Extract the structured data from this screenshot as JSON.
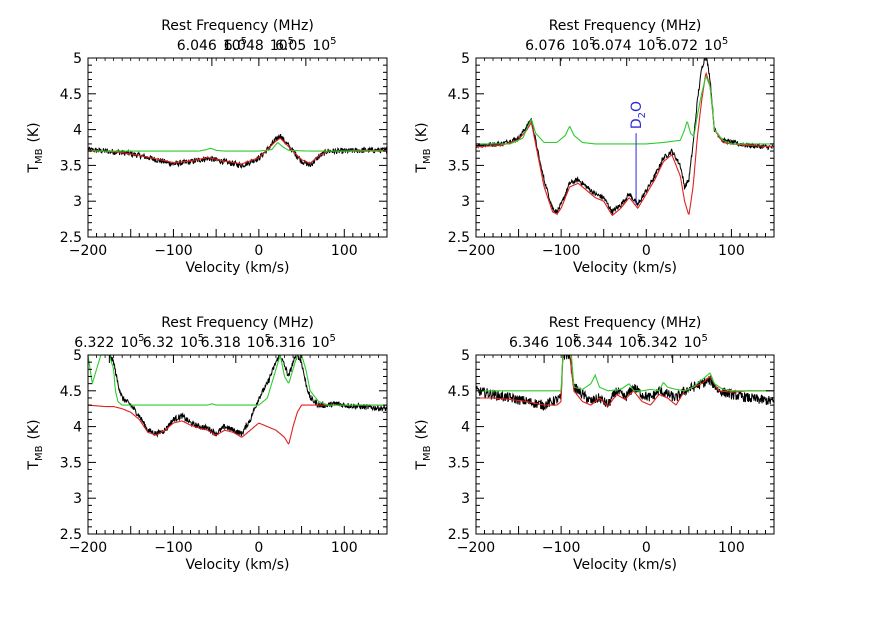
{
  "chart_data": [
    {
      "type": "line",
      "panel": "top-left",
      "xlabel": "Velocity (km/s)",
      "ylabel": "T",
      "ylabel_sub": "MB",
      "ylabel_unit": "(K)",
      "top_axis_label": "Rest Frequency (MHz)",
      "top_ticks": [
        {
          "mantissa": "6.05",
          "exp": "10",
          "sup": "5",
          "x": 55
        },
        {
          "mantissa": "6.048",
          "exp": "10",
          "sup": "5",
          "x": 0
        },
        {
          "mantissa": "6.046",
          "exp": "10",
          "sup": "5",
          "x": -55
        }
      ],
      "xlim": [
        -200,
        150
      ],
      "ylim": [
        2.5,
        5
      ],
      "xticks": [
        -200,
        -100,
        0,
        100
      ],
      "xtick_labels": [
        "−200",
        "−100",
        "0",
        "100"
      ],
      "yticks": [
        2.5,
        3,
        3.5,
        4,
        4.5,
        5
      ],
      "ytick_labels": [
        "2.5",
        "3",
        "3.5",
        "4",
        "4.5",
        "5"
      ],
      "series": [
        {
          "role": "observed",
          "color": "#000000",
          "noise": 0.04,
          "x": [
            -200,
            -180,
            -160,
            -140,
            -120,
            -100,
            -80,
            -60,
            -40,
            -20,
            0,
            10,
            20,
            25,
            30,
            40,
            50,
            60,
            70,
            80,
            100,
            120,
            150
          ],
          "y": [
            3.72,
            3.7,
            3.68,
            3.64,
            3.58,
            3.52,
            3.55,
            3.6,
            3.55,
            3.5,
            3.6,
            3.72,
            3.86,
            3.92,
            3.84,
            3.7,
            3.56,
            3.5,
            3.62,
            3.7,
            3.7,
            3.71,
            3.71
          ]
        },
        {
          "role": "model",
          "color": "#e02020",
          "noise": 0,
          "x": [
            -200,
            -180,
            -160,
            -140,
            -120,
            -100,
            -80,
            -60,
            -40,
            -20,
            0,
            10,
            20,
            25,
            30,
            40,
            50,
            60,
            70,
            80,
            100,
            120,
            150
          ],
          "y": [
            3.71,
            3.7,
            3.68,
            3.64,
            3.59,
            3.54,
            3.56,
            3.61,
            3.56,
            3.52,
            3.61,
            3.72,
            3.84,
            3.88,
            3.82,
            3.7,
            3.58,
            3.53,
            3.63,
            3.7,
            3.7,
            3.71,
            3.71
          ]
        },
        {
          "role": "model",
          "color": "#2ecc2e",
          "noise": 0,
          "x": [
            -200,
            -70,
            -62,
            -56,
            -50,
            -40,
            0,
            15,
            22,
            28,
            35,
            60,
            150
          ],
          "y": [
            3.7,
            3.7,
            3.72,
            3.74,
            3.71,
            3.7,
            3.7,
            3.72,
            3.82,
            3.76,
            3.71,
            3.7,
            3.7
          ]
        }
      ],
      "annotations": []
    },
    {
      "type": "line",
      "panel": "top-right",
      "xlabel": "Velocity (km/s)",
      "ylabel": "T",
      "ylabel_sub": "MB",
      "ylabel_unit": "(K)",
      "top_axis_label": "Rest Frequency (MHz)",
      "top_ticks": [
        {
          "mantissa": "6.076",
          "exp": "10",
          "sup": "5",
          "x": -101
        },
        {
          "mantissa": "6.074",
          "exp": "10",
          "sup": "5",
          "x": -23
        },
        {
          "mantissa": "6.072",
          "exp": "10",
          "sup": "5",
          "x": 55
        }
      ],
      "xlim": [
        -200,
        150
      ],
      "ylim": [
        2.5,
        5
      ],
      "xticks": [
        -200,
        -100,
        0,
        100
      ],
      "xtick_labels": [
        "−200",
        "−100",
        "0",
        "100"
      ],
      "yticks": [
        2.5,
        3,
        3.5,
        4,
        4.5,
        5
      ],
      "ytick_labels": [
        "2.5",
        "3",
        "3.5",
        "4",
        "4.5",
        "5"
      ],
      "series": [
        {
          "role": "observed",
          "color": "#000000",
          "noise": 0.035,
          "x": [
            -200,
            -170,
            -150,
            -140,
            -135,
            -130,
            -125,
            -120,
            -110,
            -105,
            -100,
            -90,
            -80,
            -70,
            -60,
            -50,
            -40,
            -30,
            -20,
            -10,
            0,
            10,
            20,
            30,
            40,
            45,
            50,
            55,
            60,
            65,
            70,
            75,
            80,
            90,
            100,
            120,
            150
          ],
          "y": [
            3.78,
            3.8,
            3.88,
            4.05,
            4.15,
            3.85,
            3.55,
            3.3,
            2.9,
            2.85,
            2.95,
            3.25,
            3.3,
            3.2,
            3.1,
            3.05,
            2.85,
            2.95,
            3.1,
            2.95,
            3.15,
            3.35,
            3.6,
            3.7,
            3.5,
            3.2,
            3.3,
            3.8,
            4.4,
            4.85,
            5.05,
            4.7,
            4.0,
            3.85,
            3.82,
            3.78,
            3.75
          ]
        },
        {
          "role": "model",
          "color": "#e02020",
          "noise": 0,
          "x": [
            -200,
            -170,
            -150,
            -140,
            -135,
            -130,
            -125,
            -120,
            -110,
            -105,
            -100,
            -90,
            -80,
            -70,
            -60,
            -50,
            -40,
            -30,
            -20,
            -10,
            0,
            10,
            20,
            30,
            40,
            45,
            50,
            55,
            60,
            65,
            70,
            75,
            80,
            90,
            100,
            120,
            150
          ],
          "y": [
            3.76,
            3.78,
            3.86,
            4.0,
            4.1,
            3.8,
            3.5,
            3.2,
            2.85,
            2.82,
            2.9,
            3.2,
            3.25,
            3.15,
            3.05,
            3.0,
            2.8,
            2.9,
            3.05,
            2.9,
            3.1,
            3.3,
            3.55,
            3.65,
            3.35,
            3.0,
            2.8,
            3.2,
            3.9,
            4.4,
            4.8,
            4.6,
            4.0,
            3.82,
            3.8,
            3.78,
            3.76
          ]
        },
        {
          "role": "model",
          "color": "#2ecc2e",
          "noise": 0,
          "x": [
            -200,
            -160,
            -145,
            -140,
            -135,
            -130,
            -120,
            -105,
            -95,
            -90,
            -85,
            -75,
            -60,
            -20,
            0,
            20,
            40,
            45,
            48,
            52,
            56,
            60,
            65,
            70,
            75,
            80,
            90,
            100,
            150
          ],
          "y": [
            3.8,
            3.8,
            3.88,
            4.02,
            4.15,
            3.95,
            3.82,
            3.82,
            3.92,
            4.05,
            3.92,
            3.82,
            3.8,
            3.8,
            3.8,
            3.82,
            3.85,
            4.0,
            4.12,
            3.95,
            3.9,
            4.2,
            4.5,
            4.75,
            4.6,
            4.0,
            3.85,
            3.8,
            3.8
          ]
        }
      ],
      "annotations": [
        {
          "text": "D",
          "sub": "2",
          "tail": "O",
          "x": -12,
          "y_from": 2.95,
          "y_to": 3.95
        }
      ]
    },
    {
      "type": "line",
      "panel": "bottom-left",
      "xlabel": "Velocity (km/s)",
      "ylabel": "T",
      "ylabel_sub": "MB",
      "ylabel_unit": "(K)",
      "top_axis_label": "Rest Frequency (MHz)",
      "top_ticks": [
        {
          "mantissa": "6.322",
          "exp": "10",
          "sup": "5",
          "x": -175
        },
        {
          "mantissa": "6.32",
          "exp": "10",
          "sup": "5",
          "x": -100
        },
        {
          "mantissa": "6.318",
          "exp": "10",
          "sup": "5",
          "x": -27
        },
        {
          "mantissa": "6.316",
          "exp": "10",
          "sup": "5",
          "x": 49
        }
      ],
      "xlim": [
        -200,
        150
      ],
      "ylim": [
        2.5,
        5
      ],
      "xticks": [
        -200,
        -100,
        0,
        100
      ],
      "xtick_labels": [
        "−200",
        "−100",
        "0",
        "100"
      ],
      "yticks": [
        2.5,
        3,
        3.5,
        4,
        4.5,
        5
      ],
      "ytick_labels": [
        "2.5",
        "3",
        "3.5",
        "4",
        "4.5",
        "5"
      ],
      "series": [
        {
          "role": "observed",
          "color": "#000000",
          "noise": 0.04,
          "x": [
            -175,
            -170,
            -165,
            -160,
            -150,
            -140,
            -130,
            -120,
            -110,
            -100,
            -90,
            -80,
            -70,
            -60,
            -50,
            -40,
            -30,
            -20,
            -10,
            0,
            10,
            20,
            25,
            30,
            35,
            40,
            45,
            50,
            55,
            60,
            70,
            80,
            90,
            100,
            120,
            150
          ],
          "y": [
            5.0,
            4.9,
            4.6,
            4.4,
            4.3,
            4.15,
            3.95,
            3.9,
            3.95,
            4.1,
            4.15,
            4.05,
            4.0,
            3.98,
            3.9,
            4.0,
            3.95,
            3.9,
            4.1,
            4.4,
            4.6,
            4.9,
            5.0,
            4.85,
            4.7,
            4.9,
            5.0,
            4.9,
            4.6,
            4.4,
            4.3,
            4.3,
            4.32,
            4.3,
            4.28,
            4.25
          ]
        },
        {
          "role": "model",
          "color": "#e02020",
          "noise": 0,
          "x": [
            -200,
            -180,
            -170,
            -160,
            -150,
            -140,
            -130,
            -120,
            -110,
            -100,
            -90,
            -80,
            -70,
            -60,
            -50,
            -40,
            -30,
            -20,
            -10,
            0,
            10,
            20,
            25,
            30,
            35,
            40,
            45,
            50,
            60,
            70,
            80,
            100,
            150
          ],
          "y": [
            4.3,
            4.28,
            4.28,
            4.25,
            4.2,
            4.1,
            3.92,
            3.88,
            3.95,
            4.05,
            4.08,
            4.02,
            3.98,
            3.95,
            3.88,
            3.95,
            3.92,
            3.85,
            3.95,
            4.05,
            4.0,
            3.95,
            3.9,
            3.85,
            3.75,
            4.0,
            4.2,
            4.3,
            4.3,
            4.3,
            4.3,
            4.3,
            4.3
          ]
        },
        {
          "role": "model",
          "color": "#2ecc2e",
          "noise": 0,
          "x": [
            -200,
            -195,
            -190,
            -185,
            -180,
            -175,
            -170,
            -168,
            -165,
            -160,
            -150,
            -120,
            -80,
            -60,
            -55,
            -50,
            -40,
            -20,
            0,
            10,
            20,
            25,
            30,
            35,
            40,
            45,
            50,
            55,
            60,
            70,
            80,
            100,
            150
          ],
          "y": [
            5.0,
            4.6,
            4.8,
            5.0,
            5.0,
            5.0,
            4.8,
            4.5,
            4.35,
            4.3,
            4.3,
            4.3,
            4.3,
            4.3,
            4.32,
            4.3,
            4.3,
            4.3,
            4.3,
            4.4,
            4.8,
            5.0,
            4.7,
            4.6,
            4.8,
            5.0,
            5.0,
            4.8,
            4.5,
            4.35,
            4.3,
            4.3,
            4.3
          ]
        }
      ],
      "annotations": []
    },
    {
      "type": "line",
      "panel": "bottom-right",
      "xlabel": "Velocity (km/s)",
      "ylabel": "T",
      "ylabel_sub": "MB",
      "ylabel_unit": "(K)",
      "top_axis_label": "Rest Frequency (MHz)",
      "top_ticks": [
        {
          "mantissa": "6.346",
          "exp": "10",
          "sup": "5",
          "x": -120
        },
        {
          "mantissa": "6.344",
          "exp": "10",
          "sup": "5",
          "x": -45
        },
        {
          "mantissa": "6.342",
          "exp": "10",
          "sup": "5",
          "x": 31
        }
      ],
      "xlim": [
        -200,
        150
      ],
      "ylim": [
        2.5,
        5
      ],
      "xticks": [
        -200,
        -100,
        0,
        100
      ],
      "xtick_labels": [
        "−200",
        "−100",
        "0",
        "100"
      ],
      "yticks": [
        2.5,
        3,
        3.5,
        4,
        4.5,
        5
      ],
      "ytick_labels": [
        "2.5",
        "3",
        "3.5",
        "4",
        "4.5",
        "5"
      ],
      "series": [
        {
          "role": "observed",
          "color": "#000000",
          "noise": 0.07,
          "x": [
            -200,
            -180,
            -160,
            -140,
            -120,
            -110,
            -100,
            -98,
            -95,
            -90,
            -85,
            -75,
            -65,
            -55,
            -45,
            -35,
            -25,
            -15,
            -5,
            5,
            15,
            25,
            35,
            45,
            55,
            65,
            75,
            85,
            100,
            120,
            150
          ],
          "y": [
            4.5,
            4.45,
            4.4,
            4.35,
            4.3,
            4.35,
            4.4,
            5.0,
            5.0,
            5.0,
            4.55,
            4.45,
            4.35,
            4.4,
            4.3,
            4.5,
            4.4,
            4.55,
            4.45,
            4.4,
            4.5,
            4.45,
            4.4,
            4.5,
            4.55,
            4.6,
            4.65,
            4.5,
            4.45,
            4.4,
            4.35
          ]
        },
        {
          "role": "model",
          "color": "#e02020",
          "noise": 0,
          "x": [
            -200,
            -180,
            -160,
            -140,
            -120,
            -105,
            -100,
            -98,
            -95,
            -90,
            -85,
            -75,
            -65,
            -55,
            -45,
            -35,
            -25,
            -15,
            -5,
            5,
            15,
            25,
            35,
            45,
            55,
            65,
            75,
            85,
            100,
            120,
            150
          ],
          "y": [
            4.4,
            4.4,
            4.38,
            4.35,
            4.3,
            4.3,
            4.35,
            5.0,
            5.0,
            5.0,
            4.5,
            4.35,
            4.3,
            4.4,
            4.28,
            4.45,
            4.38,
            4.5,
            4.35,
            4.3,
            4.45,
            4.4,
            4.3,
            4.5,
            4.55,
            4.6,
            4.7,
            4.5,
            4.48,
            4.5,
            4.5
          ]
        },
        {
          "role": "model",
          "color": "#2ecc2e",
          "noise": 0,
          "x": [
            -200,
            -120,
            -100,
            -98,
            -96,
            -94,
            -92,
            -90,
            -88,
            -85,
            -75,
            -65,
            -60,
            -55,
            -45,
            -30,
            -20,
            -15,
            -5,
            5,
            15,
            20,
            25,
            35,
            45,
            55,
            65,
            75,
            80,
            90,
            100,
            150
          ],
          "y": [
            4.5,
            4.5,
            4.5,
            5.0,
            5.0,
            5.0,
            5.0,
            5.0,
            5.0,
            4.55,
            4.52,
            4.6,
            4.72,
            4.55,
            4.5,
            4.52,
            4.6,
            4.5,
            4.5,
            4.52,
            4.5,
            4.62,
            4.55,
            4.52,
            4.5,
            4.55,
            4.65,
            4.75,
            4.6,
            4.52,
            4.5,
            4.5
          ]
        }
      ],
      "annotations": []
    }
  ]
}
